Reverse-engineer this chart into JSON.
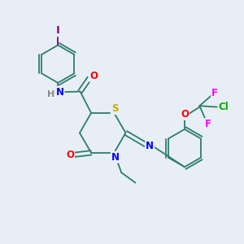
{
  "bg_color": "#e8eef5",
  "atom_colors": {
    "C": "#2d7d6b",
    "N": "#0000ff",
    "O": "#ff0000",
    "S": "#ccaa00",
    "I": "#880088",
    "F": "#ff00ff",
    "Cl": "#00aa00",
    "H": "#888888"
  },
  "bond_color": "#2d7d6b",
  "font_size": 8.5
}
